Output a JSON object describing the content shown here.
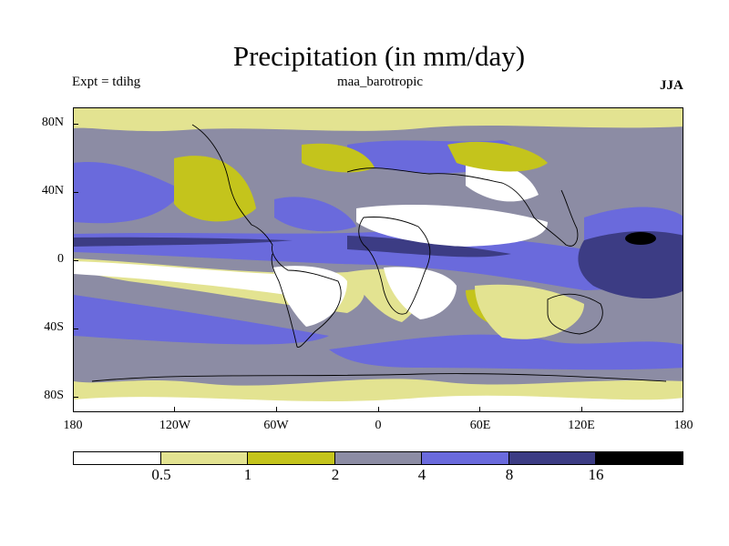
{
  "title": "Precipitation (in mm/day)",
  "experiment": "Expt = tdihg",
  "run_name": "maa_barotropic",
  "season": "JJA",
  "map": {
    "latitude_labels": [
      "80N",
      "40N",
      "0",
      "40S",
      "80S"
    ],
    "longitude_labels": [
      "180",
      "120W",
      "60W",
      "0",
      "60E",
      "120E",
      "180"
    ]
  },
  "legend": {
    "levels": [
      "0.5",
      "1",
      "2",
      "4",
      "8",
      "16"
    ],
    "colors": [
      "#ffffff",
      "#e3e391",
      "#c4c41c",
      "#8c8ca4",
      "#6a6adc",
      "#3c3c84",
      "#000000"
    ]
  }
}
